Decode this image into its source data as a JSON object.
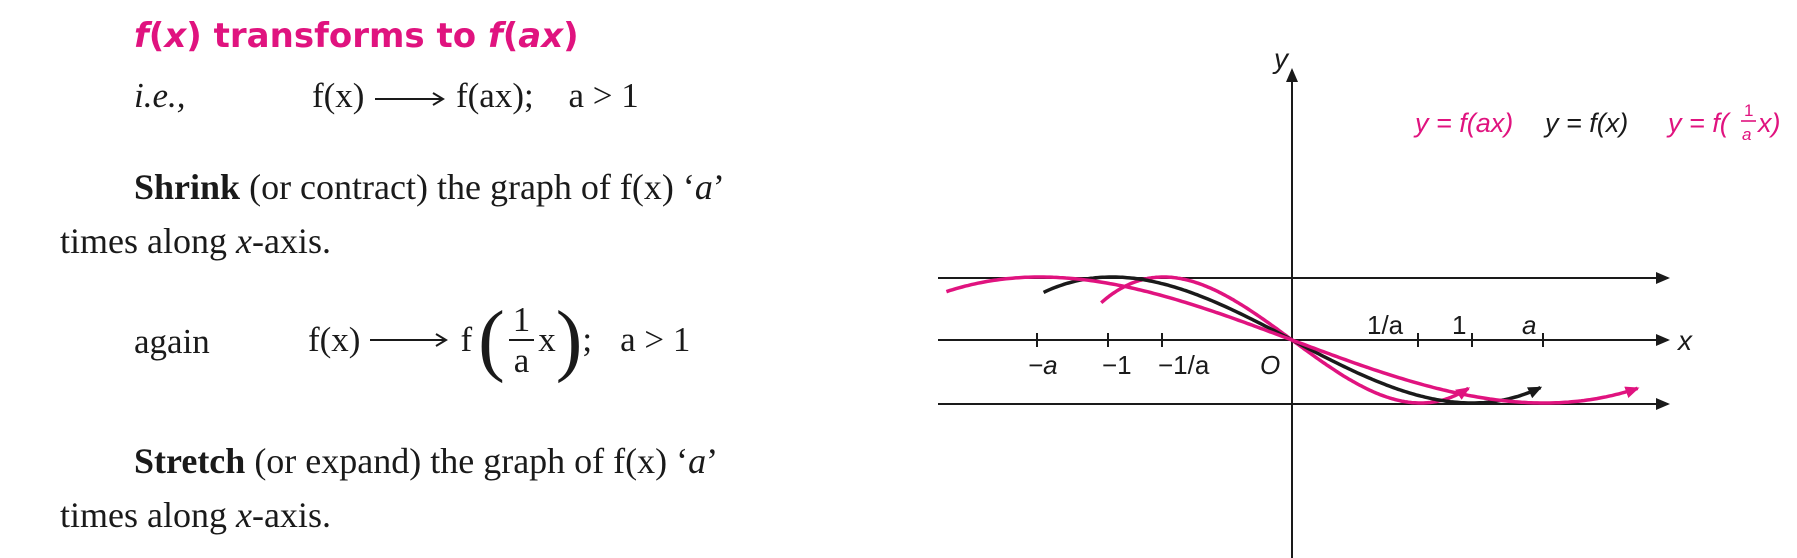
{
  "heading": {
    "part1": "f",
    "part2": "(",
    "part3": "x",
    "part4": ")",
    "part5": " transforms to ",
    "part6": "f",
    "part7": "(",
    "part8": "ax",
    "part9": ")"
  },
  "line1": {
    "ie": "i.e.,",
    "lhs": "f(x)",
    "rhs": "f(ax);",
    "cond": "a > 1"
  },
  "para1": {
    "bold": "Shrink",
    "rest": " (or contract) the graph of f(x) ‘",
    "a": "a",
    "close": "’",
    "line2a": "times along ",
    "line2x": "x",
    "line2b": "-axis."
  },
  "line2": {
    "again": "again",
    "lhs": "f(x)",
    "f": "f",
    "num": "1",
    "den": "a",
    "x": "x",
    "semi": ";",
    "cond": "a > 1"
  },
  "para2": {
    "bold": "Stretch",
    "rest": " (or expand) the graph of f(x) ‘",
    "a": "a",
    "close": "’",
    "line2a": "times along ",
    "line2x": "x",
    "line2b": "-axis."
  },
  "graph": {
    "y_axis_label": "y",
    "x_axis_label": "x",
    "origin_label": "O",
    "legend_fax": "y = f(ax)",
    "legend_fx": "y = f(x)",
    "legend_finv_prefix": "y = f(",
    "legend_finv_num": "1",
    "legend_finv_den": "a",
    "legend_finv_suffix": "x)",
    "tick_neg_a": "−a",
    "tick_neg_1": "−1",
    "tick_neg_1_over_a": "−1/a",
    "tick_1_over_a": "1/a",
    "tick_1": "1",
    "tick_a": "a",
    "colors": {
      "pink": "#e0137f",
      "black": "#1a1a1a"
    }
  }
}
